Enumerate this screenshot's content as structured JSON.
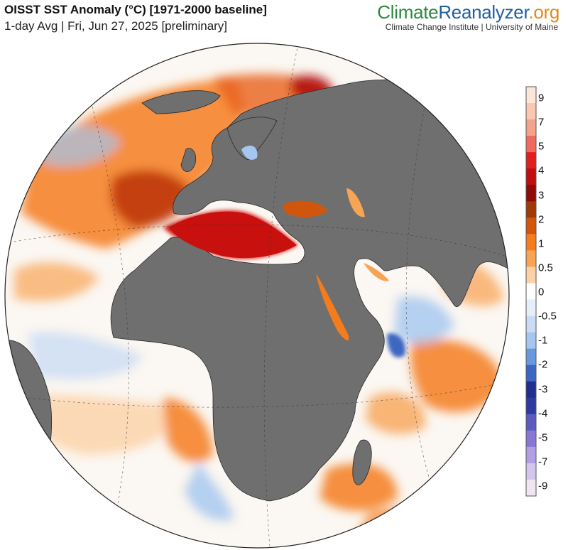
{
  "header": {
    "title": "OISST SST Anomaly (°C) [1971-2000 baseline]",
    "subtitle": "1-day Avg | Fri, Jun 27, 2025 [preliminary]"
  },
  "brand": {
    "part1": "Climate",
    "part2": "Reanalyzer",
    "part3": ".org",
    "credit": "Climate Change Institute | University of Maine"
  },
  "colors": {
    "land": "#6f6f6f",
    "ocean_neutral": "#fbf7f2",
    "border": "#2a2a2a"
  },
  "legend": {
    "labels": [
      "9",
      "7",
      "5",
      "4",
      "3",
      "2",
      "1",
      "0.5",
      "0",
      "-0.5",
      "-1",
      "-2",
      "-3",
      "-4",
      "-5",
      "-7",
      "-9"
    ],
    "swatches": [
      "#fde5d8",
      "#fbc7b0",
      "#f4a28a",
      "#ef6a5f",
      "#e21f1f",
      "#bf0d10",
      "#8c0a08",
      "#9e3a08",
      "#d0560e",
      "#f47c1c",
      "#f8a455",
      "#fdd1a6",
      "#ffffff",
      "#e6eef9",
      "#cadcf4",
      "#a4c6ef",
      "#6a98dc",
      "#3c66c2",
      "#1f2f8e",
      "#2e3aa0",
      "#5c5cc0",
      "#8877d3",
      "#b29fe3",
      "#d4c5ef",
      "#f2e5f3"
    ]
  }
}
